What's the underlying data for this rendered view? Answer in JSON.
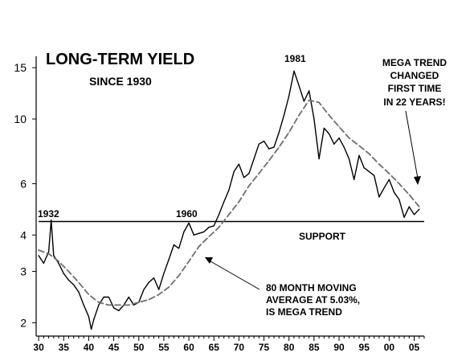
{
  "chart_data": {
    "type": "line",
    "title": "LONG-TERM YIELD",
    "subtitle": "SINCE 1930",
    "x_range": [
      1929.5,
      2007
    ],
    "y_scale": "log",
    "y_range": [
      1.8,
      16
    ],
    "y_ticks": [
      2,
      3,
      4,
      6,
      10,
      15
    ],
    "x_tick_labels": [
      "30",
      "35",
      "40",
      "45",
      "50",
      "55",
      "60",
      "65",
      "70",
      "75",
      "80",
      "85",
      "90",
      "95",
      "00",
      "05"
    ],
    "x_tick_years": [
      1930,
      1935,
      1940,
      1945,
      1950,
      1955,
      1960,
      1965,
      1970,
      1975,
      1980,
      1985,
      1990,
      1995,
      2000,
      2005
    ],
    "series": [
      {
        "key": "yield",
        "color": "#000000",
        "x": [
          1930,
          1931,
          1932,
          1932.5,
          1933,
          1934,
          1935,
          1936,
          1937,
          1938,
          1939,
          1940,
          1940.5,
          1941,
          1942,
          1943,
          1944,
          1945,
          1946,
          1947,
          1948,
          1949,
          1950,
          1951,
          1952,
          1953,
          1954,
          1955,
          1956,
          1957,
          1958,
          1959,
          1960,
          1961,
          1962,
          1963,
          1964,
          1965,
          1966,
          1967,
          1968,
          1969,
          1970,
          1971,
          1972,
          1973,
          1974,
          1975,
          1976,
          1977,
          1978,
          1979,
          1980,
          1981,
          1982,
          1983,
          1984,
          1985,
          1986,
          1987,
          1988,
          1989,
          1990,
          1991,
          1992,
          1993,
          1994,
          1995,
          1996,
          1997,
          1998,
          1999,
          2000,
          2001,
          2002,
          2003,
          2004,
          2005,
          2006
        ],
        "y": [
          3.4,
          3.2,
          3.5,
          4.5,
          3.4,
          3.2,
          2.95,
          2.8,
          2.7,
          2.55,
          2.3,
          2.1,
          1.9,
          2.05,
          2.3,
          2.45,
          2.45,
          2.25,
          2.2,
          2.3,
          2.45,
          2.3,
          2.35,
          2.6,
          2.75,
          2.85,
          2.6,
          2.95,
          3.3,
          3.7,
          3.6,
          4.1,
          4.4,
          4.0,
          4.05,
          4.1,
          4.25,
          4.3,
          4.7,
          5.2,
          5.7,
          6.6,
          7.0,
          6.3,
          6.5,
          7.3,
          8.2,
          8.4,
          7.9,
          8.0,
          9.0,
          10.3,
          12.0,
          14.6,
          13.0,
          11.5,
          12.5,
          10.0,
          7.3,
          9.3,
          8.9,
          8.2,
          8.6,
          8.0,
          7.3,
          6.2,
          7.5,
          6.8,
          6.6,
          6.4,
          5.4,
          5.8,
          6.2,
          5.6,
          5.3,
          4.6,
          5.0,
          4.7,
          4.9
        ]
      },
      {
        "key": "moving_average",
        "color": "#6e6e6e",
        "x": [
          1930,
          1932,
          1934,
          1936,
          1938,
          1940,
          1942,
          1944,
          1946,
          1948,
          1950,
          1952,
          1954,
          1956,
          1958,
          1960,
          1962,
          1964,
          1966,
          1968,
          1970,
          1972,
          1974,
          1976,
          1978,
          1980,
          1982,
          1984,
          1986,
          1988,
          1990,
          1992,
          1994,
          1996,
          1998,
          2000,
          2002,
          2004,
          2006
        ],
        "y": [
          3.55,
          3.45,
          3.25,
          3.0,
          2.75,
          2.5,
          2.35,
          2.3,
          2.3,
          2.3,
          2.35,
          2.4,
          2.5,
          2.65,
          2.9,
          3.25,
          3.65,
          3.95,
          4.25,
          4.7,
          5.2,
          5.9,
          6.5,
          7.2,
          8.0,
          9.0,
          10.3,
          11.6,
          11.4,
          10.3,
          9.4,
          8.6,
          8.1,
          7.6,
          7.0,
          6.5,
          6.0,
          5.5,
          5.0
        ]
      }
    ],
    "support_line": {
      "label": "SUPPORT",
      "y": 4.45,
      "x_start": 1930,
      "x_end": 2007
    },
    "annotations": [
      {
        "key": "a1932",
        "text": "1932"
      },
      {
        "key": "a1960",
        "text": "1960"
      },
      {
        "key": "a1981",
        "text": "1981"
      }
    ],
    "mega_trend_note": [
      "MEGA TREND",
      "CHANGED",
      "FIRST TIME",
      "IN 22 YEARS!"
    ],
    "moving_avg_note": [
      "80 MONTH MOVING",
      "AVERAGE AT 5.03%,",
      "IS MEGA TREND"
    ]
  }
}
